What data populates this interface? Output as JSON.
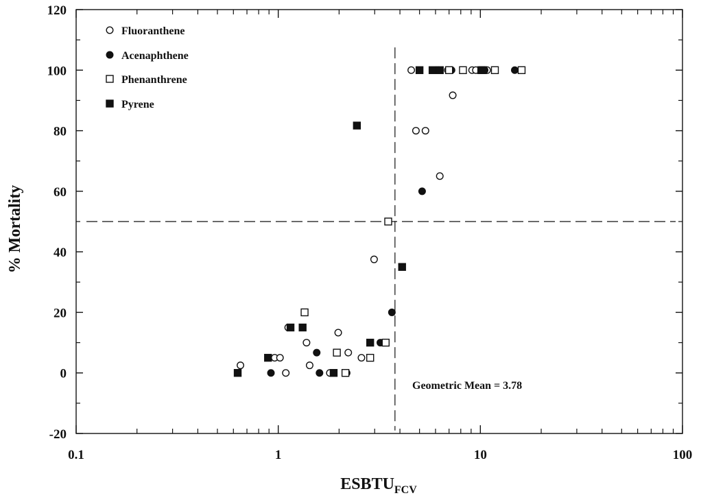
{
  "chart_data": {
    "type": "scatter",
    "xlabel_main": "ESBTU",
    "xlabel_sub": "FCV",
    "ylabel": "% Mortality",
    "x_scale": "log",
    "xlim": [
      0.1,
      100
    ],
    "ylim": [
      -20,
      120
    ],
    "x_tick_labels": [
      "0.1",
      "1",
      "10",
      "100"
    ],
    "y_tick_labels": [
      "-20",
      "0",
      "20",
      "40",
      "60",
      "80",
      "100",
      "120"
    ],
    "y_ticks": [
      -20,
      0,
      20,
      40,
      60,
      80,
      100,
      120
    ],
    "x_ticks": [
      0.1,
      1,
      10,
      100
    ],
    "grid": false,
    "legend_position": "top-left",
    "reference_lines": {
      "vertical_x": 3.78,
      "horizontal_y": 50
    },
    "annotation": "Geometric Mean = 3.78",
    "series": [
      {
        "name": "Fluoranthene",
        "marker": "open-circle",
        "points": [
          [
            0.65,
            2.5
          ],
          [
            0.96,
            5
          ],
          [
            1.02,
            5
          ],
          [
            1.09,
            0
          ],
          [
            1.12,
            15
          ],
          [
            1.38,
            10
          ],
          [
            1.43,
            2.5
          ],
          [
            1.8,
            0
          ],
          [
            1.98,
            13.3
          ],
          [
            2.22,
            6.7
          ],
          [
            2.58,
            5
          ],
          [
            2.98,
            37.5
          ],
          [
            4.55,
            100
          ],
          [
            4.8,
            80
          ],
          [
            5.35,
            80
          ],
          [
            6.3,
            65
          ],
          [
            6.9,
            100
          ],
          [
            7.3,
            91.7
          ],
          [
            9.1,
            100
          ],
          [
            9.5,
            100
          ],
          [
            10.8,
            100
          ]
        ]
      },
      {
        "name": "Acenaphthene",
        "marker": "filled-circle",
        "points": [
          [
            0.92,
            0
          ],
          [
            1.55,
            6.7
          ],
          [
            1.6,
            0
          ],
          [
            2.18,
            0
          ],
          [
            3.2,
            10
          ],
          [
            3.65,
            20
          ],
          [
            5.15,
            60
          ],
          [
            6.2,
            100
          ],
          [
            7.2,
            100
          ],
          [
            10.5,
            100
          ],
          [
            14.8,
            100
          ]
        ]
      },
      {
        "name": "Phenanthrene",
        "marker": "open-square",
        "points": [
          [
            1.35,
            20
          ],
          [
            1.95,
            6.7
          ],
          [
            2.15,
            0
          ],
          [
            2.85,
            5
          ],
          [
            3.4,
            10
          ],
          [
            3.5,
            50
          ],
          [
            7.0,
            100
          ],
          [
            8.2,
            100
          ],
          [
            11.8,
            100
          ],
          [
            16.0,
            100
          ]
        ]
      },
      {
        "name": "Pyrene",
        "marker": "filled-square",
        "points": [
          [
            0.63,
            0
          ],
          [
            0.89,
            5
          ],
          [
            1.15,
            15
          ],
          [
            1.32,
            15
          ],
          [
            1.88,
            0
          ],
          [
            2.45,
            81.7
          ],
          [
            2.85,
            10
          ],
          [
            4.1,
            35
          ],
          [
            5.0,
            100
          ],
          [
            5.8,
            100
          ],
          [
            6.3,
            100
          ],
          [
            10.1,
            100
          ],
          [
            10.3,
            100
          ]
        ]
      }
    ]
  }
}
